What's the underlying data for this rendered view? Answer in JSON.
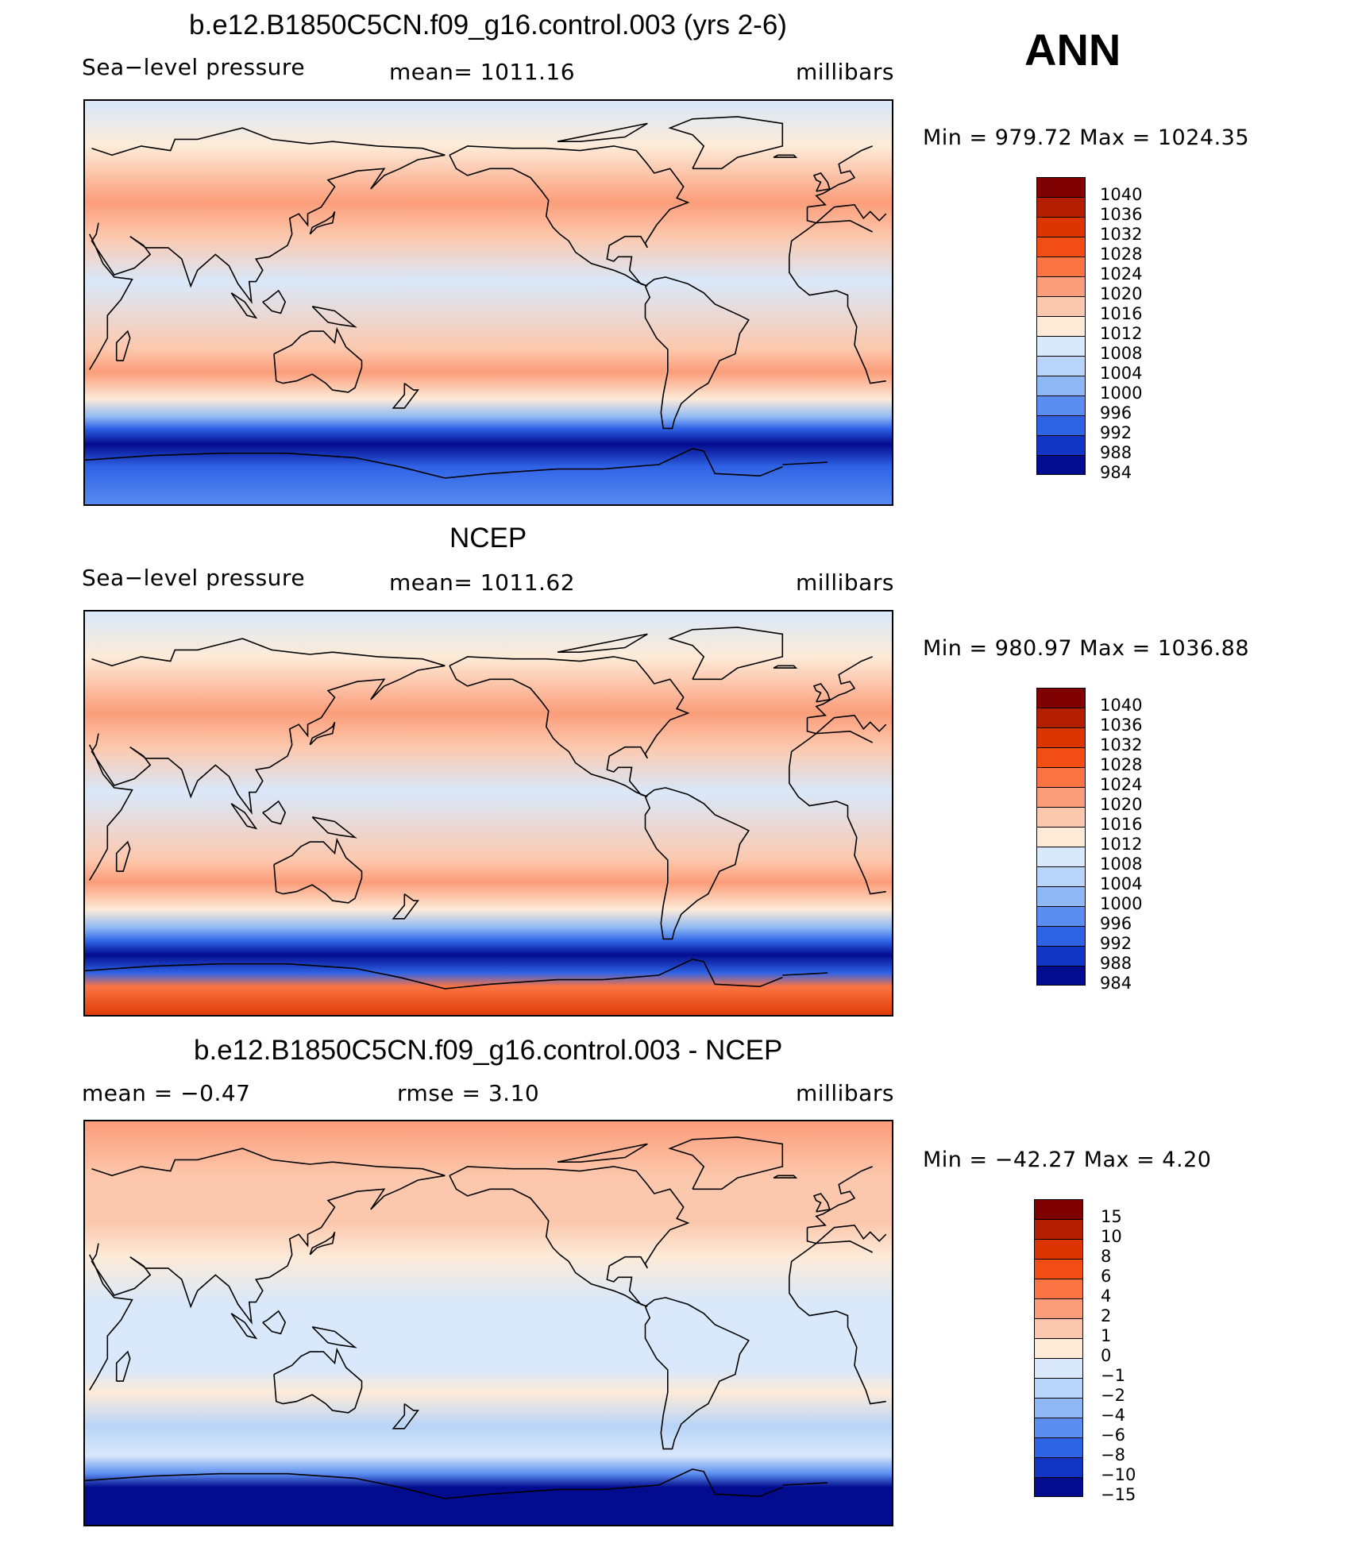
{
  "season": "ANN",
  "land_color": "#000000",
  "panels": [
    {
      "id": "model",
      "title": "b.e12.B1850C5CN.f09_g16.control.003 (yrs 2-6)",
      "left_label": "Sea−level pressure",
      "center_label": "mean=  1011.16",
      "right_label": "millibars",
      "minmax": "Min  =  979.72  Max  =  1024.35",
      "levels": [
        "1040",
        "1036",
        "1032",
        "1028",
        "1024",
        "1020",
        "1016",
        "1012",
        "1008",
        "1004",
        "1000",
        "996",
        "992",
        "988",
        "984"
      ],
      "bands": [
        {
          "lat": 90,
          "level_index": 8
        },
        {
          "lat": 70,
          "level_index": 7
        },
        {
          "lat": 45,
          "level_index": 5
        },
        {
          "lat": 30,
          "level_index": 6
        },
        {
          "lat": 10,
          "level_index": 8
        },
        {
          "lat": -20,
          "level_index": 6
        },
        {
          "lat": -30,
          "level_index": 5
        },
        {
          "lat": -42,
          "level_index": 7
        },
        {
          "lat": -50,
          "level_index": 10
        },
        {
          "lat": -55,
          "level_index": 12
        },
        {
          "lat": -62,
          "level_index": 14
        },
        {
          "lat": -72,
          "level_index": 12
        },
        {
          "lat": -90,
          "level_index": 11
        }
      ]
    },
    {
      "id": "obs",
      "title": "NCEP",
      "left_label": "Sea−level pressure",
      "center_label": "mean=  1011.62",
      "right_label": "millibars",
      "minmax": "Min  =  980.97  Max  =  1036.88",
      "levels": [
        "1040",
        "1036",
        "1032",
        "1028",
        "1024",
        "1020",
        "1016",
        "1012",
        "1008",
        "1004",
        "1000",
        "996",
        "992",
        "988",
        "984"
      ],
      "bands": [
        {
          "lat": 90,
          "level_index": 8
        },
        {
          "lat": 70,
          "level_index": 7
        },
        {
          "lat": 45,
          "level_index": 5
        },
        {
          "lat": 30,
          "level_index": 6
        },
        {
          "lat": 10,
          "level_index": 8
        },
        {
          "lat": -20,
          "level_index": 6
        },
        {
          "lat": -30,
          "level_index": 5
        },
        {
          "lat": -42,
          "level_index": 7
        },
        {
          "lat": -50,
          "level_index": 10
        },
        {
          "lat": -56,
          "level_index": 12
        },
        {
          "lat": -62,
          "level_index": 14
        },
        {
          "lat": -70,
          "level_index": 12
        },
        {
          "lat": -76,
          "level_index": 4
        },
        {
          "lat": -90,
          "level_index": 2
        }
      ]
    },
    {
      "id": "diff",
      "title": "b.e12.B1850C5CN.f09_g16.control.003 - NCEP",
      "left_label": "mean  =    −0.47",
      "center_label": "rmse  =     3.10",
      "right_label": "millibars",
      "minmax": "Min  =  −42.27  Max  =      4.20",
      "levels": [
        "15",
        "10",
        "8",
        "6",
        "4",
        "2",
        "1",
        "0",
        "−1",
        "−2",
        "−4",
        "−6",
        "−8",
        "−10",
        "−15"
      ],
      "bands": [
        {
          "lat": 90,
          "level_index": 5
        },
        {
          "lat": 65,
          "level_index": 6
        },
        {
          "lat": 45,
          "level_index": 6
        },
        {
          "lat": 30,
          "level_index": 7
        },
        {
          "lat": 10,
          "level_index": 8
        },
        {
          "lat": -20,
          "level_index": 8
        },
        {
          "lat": -30,
          "level_index": 7
        },
        {
          "lat": -45,
          "level_index": 9
        },
        {
          "lat": -58,
          "level_index": 8
        },
        {
          "lat": -66,
          "level_index": 11
        },
        {
          "lat": -72,
          "level_index": 14
        },
        {
          "lat": -90,
          "level_index": 14
        }
      ]
    }
  ],
  "palette": [
    "#7f0000",
    "#b31e00",
    "#dc3502",
    "#f14d14",
    "#fb7444",
    "#fb9d7a",
    "#fcc8ad",
    "#fdebd8",
    "#d9e8fa",
    "#b8d4f8",
    "#8eb8f4",
    "#5b8ef0",
    "#2f63e6",
    "#1235c6",
    "#030c8e"
  ]
}
